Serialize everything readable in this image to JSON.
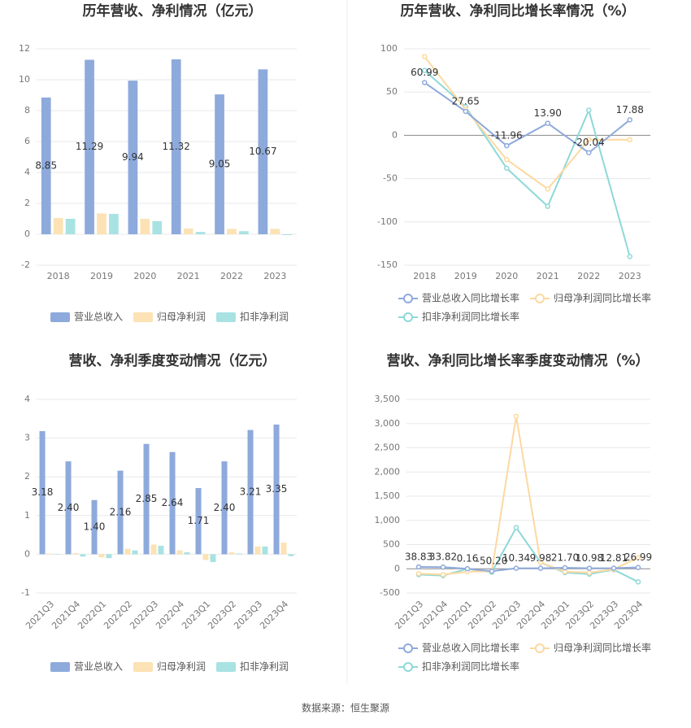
{
  "chart_data": [
    {
      "type": "bar",
      "title": "历年营收、净利情况（亿元）",
      "categories": [
        "2018",
        "2019",
        "2020",
        "2021",
        "2022",
        "2023"
      ],
      "series": [
        {
          "name": "营业总收入",
          "color": "#8eaadc",
          "data_labels": true,
          "values": [
            8.85,
            11.29,
            9.94,
            11.32,
            9.05,
            10.67
          ]
        },
        {
          "name": "归母净利润",
          "color": "#fce2b4",
          "values": [
            1.05,
            1.35,
            1.0,
            0.38,
            0.35,
            0.35
          ]
        },
        {
          "name": "扣非净利润",
          "color": "#a9e2e2",
          "values": [
            1.0,
            1.32,
            0.85,
            0.15,
            0.2,
            -0.05
          ]
        }
      ],
      "ylim": [
        -2,
        12
      ],
      "yticks": [
        -2,
        0,
        2,
        4,
        6,
        8,
        10,
        12
      ],
      "grid": true
    },
    {
      "type": "line",
      "title": "历年营收、净利同比增长率情况（%）",
      "categories": [
        "2018",
        "2019",
        "2020",
        "2021",
        "2022",
        "2023"
      ],
      "series": [
        {
          "name": "营业总收入同比增长率",
          "color": "#8eaadc",
          "data_labels": true,
          "values": [
            60.99,
            27.65,
            -11.96,
            13.9,
            -20.04,
            17.88
          ],
          "value_labels": [
            "60.99",
            "27.65",
            "-11.96",
            "13.90",
            "-20.04",
            "17.88"
          ]
        },
        {
          "name": "归母净利润同比增长率",
          "color": "#fcd9a0",
          "values": [
            91,
            30,
            -28,
            -62,
            -5,
            -5
          ]
        },
        {
          "name": "扣非净利润同比增长率",
          "color": "#8fd8d8",
          "values": [
            75,
            33,
            -38,
            -82,
            29,
            -140
          ]
        }
      ],
      "ylim": [
        -150,
        100
      ],
      "yticks": [
        -150,
        -100,
        -50,
        0,
        50,
        100
      ],
      "grid": true
    },
    {
      "type": "bar",
      "title": "营收、净利季度变动情况（亿元）",
      "categories": [
        "2021Q3",
        "2021Q4",
        "2022Q1",
        "2022Q2",
        "2022Q3",
        "2022Q4",
        "2023Q1",
        "2023Q2",
        "2023Q3",
        "2023Q4"
      ],
      "series": [
        {
          "name": "营业总收入",
          "color": "#8eaadc",
          "data_labels": true,
          "values": [
            3.18,
            2.4,
            1.4,
            2.16,
            2.85,
            2.64,
            1.71,
            2.4,
            3.21,
            3.35
          ],
          "value_labels": [
            "3.18",
            "2.40",
            "1.40",
            "2.16",
            "2.85",
            "2.64",
            "1.71",
            "2.40",
            "3.21",
            "3.35"
          ]
        },
        {
          "name": "归母净利润",
          "color": "#fce2b4",
          "values": [
            0.02,
            0.03,
            -0.08,
            0.14,
            0.25,
            0.1,
            -0.15,
            0.05,
            0.2,
            0.3
          ]
        },
        {
          "name": "扣非净利润",
          "color": "#a9e2e2",
          "values": [
            0.01,
            -0.06,
            -0.1,
            0.1,
            0.22,
            0.05,
            -0.2,
            0.02,
            0.2,
            -0.05
          ]
        }
      ],
      "ylim": [
        -1,
        4
      ],
      "yticks": [
        -1,
        0,
        1,
        2,
        3,
        4
      ],
      "grid": true
    },
    {
      "type": "line",
      "title": "营收、净利同比增长率季度变动情况（%）",
      "categories": [
        "2021Q3",
        "2021Q4",
        "2022Q1",
        "2022Q2",
        "2022Q3",
        "2022Q4",
        "2023Q1",
        "2023Q2",
        "2023Q3",
        "2023Q4"
      ],
      "series": [
        {
          "name": "营业总收入同比增长率",
          "color": "#8eaadc",
          "data_labels": true,
          "values": [
            38.83,
            33.82,
            0.16,
            -50.2,
            10.34,
            9.98,
            21.7,
            10.98,
            12.81,
            26.99
          ],
          "value_labels": [
            "38.83",
            "33.82",
            "0.16",
            "-50.20",
            "10.34",
            "9.98",
            "21.70",
            "10.98",
            "12.81",
            "26.99"
          ]
        },
        {
          "name": "归母净利润同比增长率",
          "color": "#fcd9a0",
          "values": [
            -100,
            -120,
            -60,
            -50,
            3150,
            130,
            -60,
            -80,
            -10,
            230
          ]
        },
        {
          "name": "扣非净利润同比增长率",
          "color": "#8fd8d8",
          "values": [
            -120,
            -140,
            0,
            -70,
            850,
            130,
            -80,
            -110,
            -20,
            -270
          ]
        }
      ],
      "ylim": [
        -500,
        3500
      ],
      "yticks": [
        -500,
        0,
        500,
        {
          "value": 1000,
          "label": "1,000"
        },
        {
          "value": 1500,
          "label": "1,500"
        },
        {
          "value": 2000,
          "label": "2,000"
        },
        {
          "value": 2500,
          "label": "2,500"
        },
        {
          "value": 3000,
          "label": "3,000"
        },
        {
          "value": 3500,
          "label": "3,500"
        }
      ],
      "grid": true
    }
  ],
  "source": "数据来源：恒生聚源"
}
